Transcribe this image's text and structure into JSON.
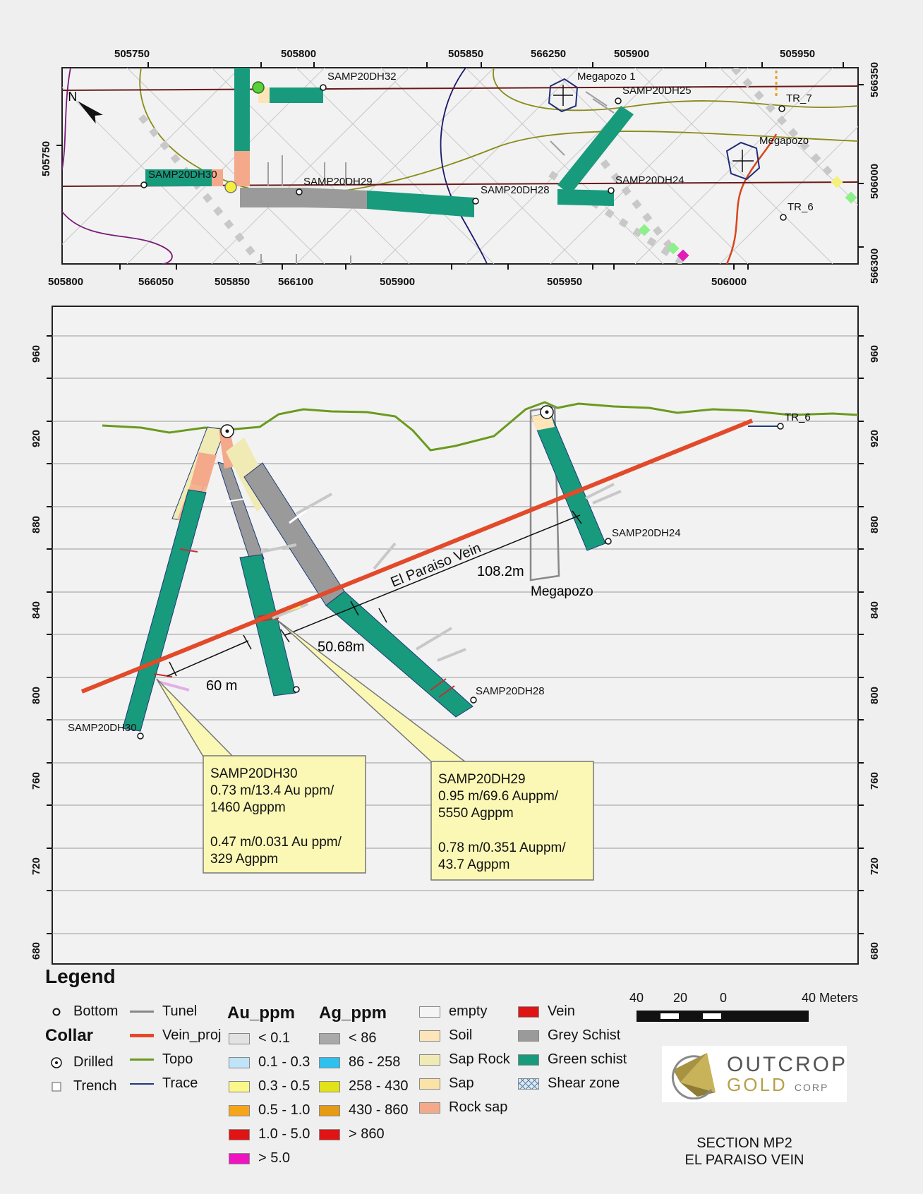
{
  "plan_map": {
    "top_axis_labels": [
      "505750",
      "505800",
      "505850",
      "566250",
      "505900",
      "505950"
    ],
    "bottom_axis_labels": [
      "505800",
      "566050",
      "505850",
      "566100",
      "505900",
      "505950",
      "506000"
    ],
    "right_axis_labels": [
      "566350",
      "506000",
      "566300"
    ],
    "left_axis_labels": [
      "505750"
    ],
    "features": {
      "dh32": "SAMP20DH32",
      "dh30": "SAMP20DH30",
      "dh29": "SAMP20DH29",
      "dh28": "SAMP20DH28",
      "dh25": "SAMP20DH25",
      "dh24": "SAMP20DH24",
      "megapozo1": "Megapozo 1",
      "megapozo": "Megapozo",
      "tr7": "TR_7",
      "tr6": "TR_6"
    }
  },
  "section": {
    "y_axis_labels": [
      "960",
      "920",
      "880",
      "840",
      "800",
      "760",
      "720",
      "680"
    ],
    "holes": {
      "dh30": "SAMP20DH30",
      "dh29_bottom": "",
      "dh28": "SAMP20DH28",
      "dh24": "SAMP20DH24",
      "tr6": "TR_6"
    },
    "vein_label": "El Paraiso Vein",
    "distances": [
      "60 m",
      "50.68m",
      "108.2m"
    ],
    "megapozo_label": "Megapozo",
    "callouts": {
      "dh30": {
        "title": "SAMP20DH30",
        "line1": "0.73 m/13.4 Au ppm/",
        "line2": "1460 Agppm",
        "line3": "0.47 m/0.031 Au ppm/",
        "line4": "329 Agppm"
      },
      "dh29": {
        "title": "SAMP20DH29",
        "line1": "0.95 m/69.6 Auppm/",
        "line2": "5550 Agppm",
        "line3": "0.78 m/0.351 Auppm/",
        "line4": "43.7 Agppm"
      }
    }
  },
  "legend": {
    "title": "Legend",
    "bottom": "Bottom",
    "collar": "Collar",
    "drilled": "Drilled",
    "trench": "Trench",
    "tunel": "Tunel",
    "vein_proj": "Vein_proj",
    "topo": "Topo",
    "trace": "Trace",
    "au_title": "Au_ppm",
    "au": [
      {
        "label": "< 0.1",
        "color": "#e2e2e2"
      },
      {
        "label": "0.1 - 0.3",
        "color": "#bfe3f7"
      },
      {
        "label": "0.3 - 0.5",
        "color": "#fbf78a"
      },
      {
        "label": "0.5 - 1.0",
        "color": "#f6a51b"
      },
      {
        "label": "1.0 - 5.0",
        "color": "#e01414"
      },
      {
        "label": "> 5.0",
        "color": "#ef14c0"
      }
    ],
    "ag_title": "Ag_ppm",
    "ag": [
      {
        "label": "< 86",
        "color": "#a9a9a9"
      },
      {
        "label": "86 - 258",
        "color": "#2ec0ef"
      },
      {
        "label": "258 - 430",
        "color": "#e2e21a"
      },
      {
        "label": "430 - 860",
        "color": "#e69b14"
      },
      {
        "label": "> 860",
        "color": "#e01414"
      }
    ],
    "lith": [
      {
        "label": "empty",
        "color": "#f4f4f4"
      },
      {
        "label": "Soil",
        "color": "#fde5b9"
      },
      {
        "label": "Sap Rock",
        "color": "#f0ebb4"
      },
      {
        "label": "Sap",
        "color": "#fbe2a6"
      },
      {
        "label": "Rock sap",
        "color": "#f4a98a"
      },
      {
        "label": "Vein",
        "color": "#e01414"
      },
      {
        "label": "Grey Schist",
        "color": "#9a9a9a"
      },
      {
        "label": "Green schist",
        "color": "#189a7c"
      },
      {
        "label": "Shear zone",
        "color": "#dbe9f4"
      }
    ],
    "scale_labels": [
      "40",
      "20",
      "0",
      "40 Meters"
    ],
    "logo_line1": "OUTCROP",
    "logo_line2": "GOLD",
    "logo_corp": "CORP",
    "section_title_1": "SECTION MP2",
    "section_title_2": "EL PARAISO VEIN"
  }
}
